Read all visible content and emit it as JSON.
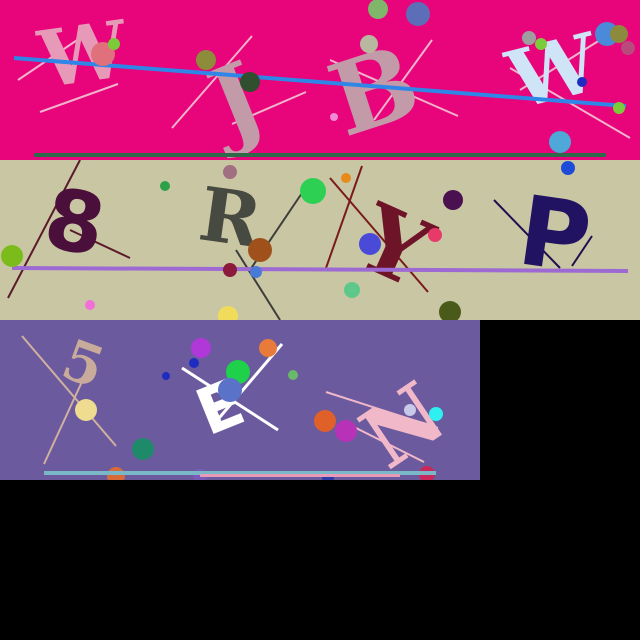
{
  "colors": {
    "band1_bg": "#e8047a",
    "band2_bg": "#c9c6a4",
    "band3_bg": "#6b5a9e",
    "page_bg": "#000000"
  },
  "bands": [
    {
      "name": "band-1",
      "glyphs": [
        "W",
        "J",
        "B",
        "W"
      ]
    },
    {
      "name": "band-2",
      "glyphs": [
        "8",
        "R",
        "Y",
        "P"
      ]
    },
    {
      "name": "band-3",
      "glyphs": [
        "5",
        "E",
        "N"
      ]
    }
  ]
}
